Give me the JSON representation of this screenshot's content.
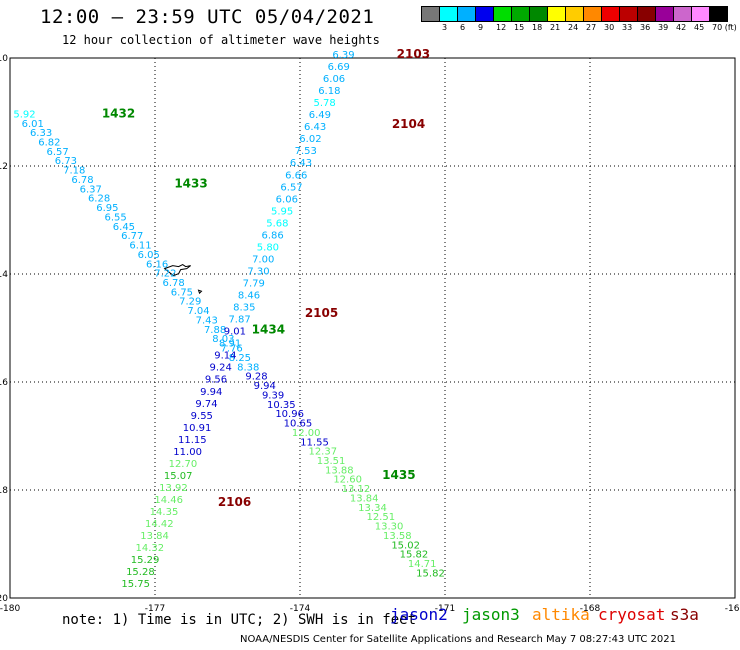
{
  "header": {
    "title": "12:00 – 23:59 UTC 05/04/2021",
    "subtitle": "12 hour collection of altimeter wave heights"
  },
  "colorbar": {
    "colors": [
      "#777777",
      "#00ffff",
      "#00b0ff",
      "#0000ee",
      "#00dd00",
      "#00aa00",
      "#008800",
      "#ffff00",
      "#ffcc00",
      "#ff8800",
      "#ee0000",
      "#bb0000",
      "#880000",
      "#990099",
      "#cc66cc",
      "#ff88ff",
      "#000000"
    ],
    "labels": [
      "3",
      "6",
      "9",
      "12",
      "15",
      "18",
      "21",
      "24",
      "27",
      "30",
      "33",
      "36",
      "39",
      "42",
      "45",
      "70 (ft)"
    ]
  },
  "footnote": "note: 1) Time is in UTC; 2) SWH is in feet",
  "legend": [
    {
      "name": "jason2",
      "color": "#0000cc"
    },
    {
      "name": "jason3",
      "color": "#009900"
    },
    {
      "name": "altika",
      "color": "#ff8800"
    },
    {
      "name": "cryosat",
      "color": "#dd0000"
    },
    {
      "name": "s3a",
      "color": "#880000"
    }
  ],
  "credits": "NOAA/NESDIS Center for Satellite Applications and Research    May  7 08:27:43 UTC 2021",
  "chart_data": {
    "type": "scatter",
    "title": "12:00 – 23:59 UTC 05/04/2021",
    "subtitle": "12 hour collection of altimeter wave heights",
    "xlabel": "",
    "ylabel": "",
    "xlim": [
      -180,
      -165
    ],
    "ylim": [
      -20,
      -10
    ],
    "x_tick_labels": [
      "-180",
      "-177",
      "-174",
      "-171",
      "-168",
      "-165"
    ],
    "y_tick_labels": [
      "-10",
      "-12",
      "-14",
      "-16",
      "-18",
      "-20"
    ],
    "grid": true,
    "color_scale": [
      {
        "max": 6,
        "color": "#00ffff"
      },
      {
        "max": 9,
        "color": "#00b0ff"
      },
      {
        "max": 12,
        "color": "#0000cc"
      },
      {
        "max": 15,
        "color": "#66ee66"
      },
      {
        "max": 18,
        "color": "#22bb22"
      },
      {
        "max": 99,
        "color": "#008800"
      }
    ],
    "time_color": "#880000",
    "jason3_time_color": "#008800",
    "tracks": [
      {
        "name": "track_west_east",
        "x_start": -179.7,
        "y_start": -11.1,
        "x_end": -171.3,
        "y_end": -19.6,
        "values": [
          "5.92",
          "6.01",
          "6.33",
          "6.82",
          "6.57",
          "6.73",
          "7.18",
          "6.78",
          "6.37",
          "6.28",
          "6.95",
          "6.55",
          "6.45",
          "6.77",
          "6.11",
          "6.05",
          "6.16",
          "7.22",
          "6.78",
          "6.75",
          "7.29",
          "7.04",
          "7.43",
          "7.88",
          "8.03",
          "7.76",
          "8.25",
          "8.38",
          "9.28",
          "9.94",
          "9.39",
          "10.35",
          "10.96",
          "10.65",
          "12.00",
          "11.55",
          "12.37",
          "13.51",
          "13.88",
          "12.60",
          "13.12",
          "13.84",
          "13.34",
          "12.51",
          "13.30",
          "13.58",
          "15.02",
          "15.82",
          "14.71",
          "15.82"
        ],
        "times": [
          {
            "label": "1432",
            "lat": -11.1,
            "lon": -178.1
          },
          {
            "label": "1433",
            "lat": -12.4,
            "lon": -176.6
          },
          {
            "label": "1434",
            "lat": -15.1,
            "lon": -175.0
          },
          {
            "label": "1435",
            "lat": -17.8,
            "lon": -172.3
          }
        ]
      },
      {
        "name": "track_northeast_southwest",
        "x_start": -173.1,
        "y_start": -10.0,
        "x_end": -177.4,
        "y_end": -19.8,
        "values": [
          "6.39",
          "6.69",
          "6.06",
          "6.18",
          "5.78",
          "6.49",
          "6.43",
          "6.02",
          "7.53",
          "6.43",
          "6.66",
          "6.57",
          "6.06",
          "5.95",
          "5.68",
          "6.86",
          "5.80",
          "7.00",
          "7.30",
          "7.79",
          "8.46",
          "8.35",
          "7.87",
          "9.01",
          "8.91",
          "9.14",
          "9.24",
          "9.56",
          "9.94",
          "9.74",
          "9.55",
          "10.91",
          "11.15",
          "11.00",
          "12.70",
          "15.07",
          "13.92",
          "14.46",
          "14.35",
          "14.42",
          "13.84",
          "14.32",
          "15.29",
          "15.28",
          "15.75"
        ],
        "times": [
          {
            "label": "2103",
            "lat": -10.0,
            "lon": -172.0
          },
          {
            "label": "2104",
            "lat": -11.3,
            "lon": -172.1
          },
          {
            "label": "2105",
            "lat": -14.8,
            "lon": -173.9
          },
          {
            "label": "2106",
            "lat": -18.3,
            "lon": -175.7
          }
        ]
      }
    ]
  }
}
